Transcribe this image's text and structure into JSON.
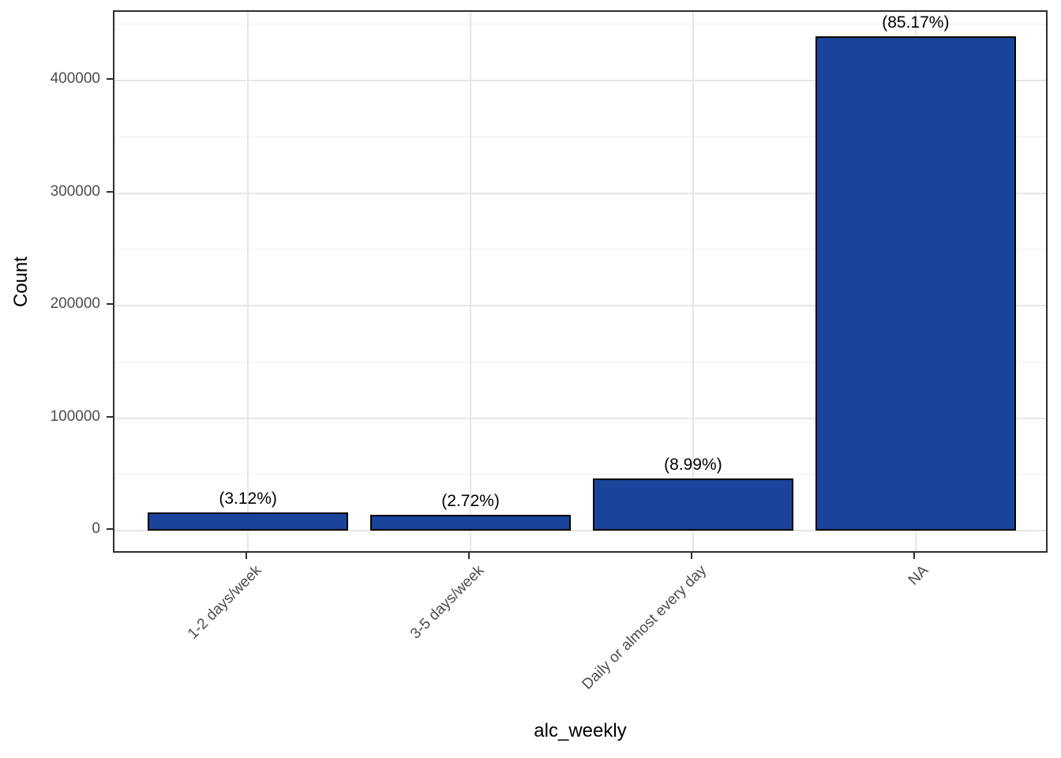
{
  "chart_data": {
    "type": "bar",
    "title": "",
    "xlabel": "alc_weekly",
    "ylabel": "Count",
    "categories": [
      "1-2 days/week",
      "3-5 days/week",
      "Daily or almost every day",
      "NA"
    ],
    "values": [
      16100,
      14000,
      46400,
      439300
    ],
    "bar_labels": [
      "(3.12%)",
      "(2.72%)",
      "(8.99%)",
      "(85.17%)"
    ],
    "percentages": [
      3.12,
      2.72,
      8.99,
      85.17
    ],
    "y_ticks": [
      0,
      100000,
      200000,
      300000,
      400000
    ],
    "y_tick_labels": [
      "0",
      "100000",
      "200000",
      "300000",
      "400000"
    ],
    "y_minor_ticks": [
      50000,
      150000,
      250000,
      350000,
      450000
    ],
    "ylim": [
      0,
      461000
    ],
    "grid": true,
    "legend": false,
    "x_tick_angle_deg": 45,
    "colors": {
      "bar_fill": "#1A449B",
      "bar_border": "#000000",
      "panel_border": "#2E2E2E",
      "grid_major": "#E6E6E6",
      "grid_minor": "#F0F0F0",
      "tick_label": "#4D4D4D",
      "axis_title": "#000000",
      "background": "#FFFFFF"
    }
  }
}
